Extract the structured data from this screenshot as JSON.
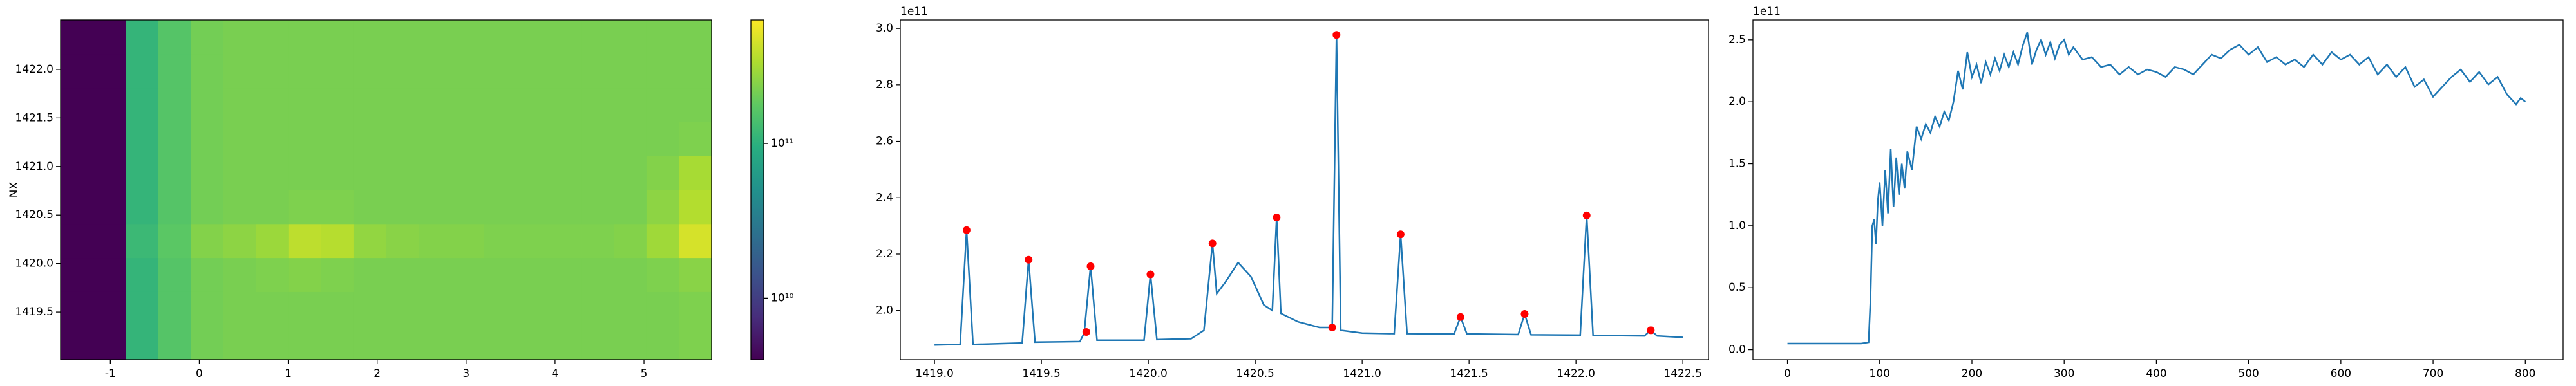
{
  "chart_data": [
    {
      "type": "heatmap",
      "ylabel": "NX",
      "xlim": [
        -1.56,
        5.76
      ],
      "ylim": [
        1419.01,
        1422.51
      ],
      "xticks": [
        -1,
        0,
        1,
        2,
        3,
        4,
        5
      ],
      "yticks": [
        1419.5,
        {
          "value": 1420,
          "label": "1420.0"
        },
        1420.5,
        {
          "value": 1421,
          "label": "1421.0"
        },
        1421.5,
        {
          "value": 1422,
          "label": "1422.0"
        }
      ],
      "xbins": [
        -1.56,
        -1.194,
        -0.828,
        -0.462,
        -0.096,
        0.27,
        0.636,
        1.002,
        1.368,
        1.734,
        2.1,
        2.466,
        2.832,
        3.198,
        3.564,
        3.93,
        4.296,
        4.662,
        5.028,
        5.394,
        5.76
      ],
      "ybins": [
        1419.01,
        1419.36,
        1419.71,
        1420.06,
        1420.41,
        1420.76,
        1421.11,
        1421.46,
        1421.81,
        1422.16,
        1422.51
      ],
      "z": [
        [
          4000000000.0,
          4000000000.0,
          110000000000.0,
          160000000000.0,
          210000000000.0,
          220000000000.0,
          220000000000.0,
          220000000000.0,
          220000000000.0,
          220000000000.0,
          220000000000.0,
          220000000000.0,
          220000000000.0,
          220000000000.0,
          220000000000.0,
          220000000000.0,
          220000000000.0,
          220000000000.0,
          220000000000.0,
          230000000000.0
        ],
        [
          4000000000.0,
          4000000000.0,
          110000000000.0,
          160000000000.0,
          210000000000.0,
          220000000000.0,
          220000000000.0,
          220000000000.0,
          220000000000.0,
          220000000000.0,
          220000000000.0,
          220000000000.0,
          220000000000.0,
          220000000000.0,
          220000000000.0,
          220000000000.0,
          220000000000.0,
          220000000000.0,
          220000000000.0,
          230000000000.0
        ],
        [
          4000000000.0,
          4000000000.0,
          110000000000.0,
          160000000000.0,
          210000000000.0,
          220000000000.0,
          230000000000.0,
          240000000000.0,
          230000000000.0,
          220000000000.0,
          220000000000.0,
          220000000000.0,
          220000000000.0,
          220000000000.0,
          220000000000.0,
          220000000000.0,
          220000000000.0,
          220000000000.0,
          230000000000.0,
          250000000000.0
        ],
        [
          4000000000.0,
          4000000000.0,
          120000000000.0,
          170000000000.0,
          240000000000.0,
          260000000000.0,
          290000000000.0,
          380000000000.0,
          360000000000.0,
          270000000000.0,
          250000000000.0,
          240000000000.0,
          240000000000.0,
          230000000000.0,
          230000000000.0,
          230000000000.0,
          230000000000.0,
          240000000000.0,
          300000000000.0,
          460000000000.0
        ],
        [
          4000000000.0,
          4000000000.0,
          110000000000.0,
          160000000000.0,
          210000000000.0,
          220000000000.0,
          220000000000.0,
          230000000000.0,
          230000000000.0,
          220000000000.0,
          220000000000.0,
          220000000000.0,
          220000000000.0,
          220000000000.0,
          220000000000.0,
          220000000000.0,
          220000000000.0,
          220000000000.0,
          260000000000.0,
          350000000000.0
        ],
        [
          4000000000.0,
          4000000000.0,
          110000000000.0,
          160000000000.0,
          210000000000.0,
          220000000000.0,
          220000000000.0,
          220000000000.0,
          220000000000.0,
          220000000000.0,
          220000000000.0,
          220000000000.0,
          220000000000.0,
          220000000000.0,
          220000000000.0,
          220000000000.0,
          220000000000.0,
          220000000000.0,
          240000000000.0,
          320000000000.0
        ],
        [
          4000000000.0,
          4000000000.0,
          110000000000.0,
          160000000000.0,
          210000000000.0,
          220000000000.0,
          220000000000.0,
          220000000000.0,
          220000000000.0,
          220000000000.0,
          220000000000.0,
          220000000000.0,
          220000000000.0,
          220000000000.0,
          220000000000.0,
          220000000000.0,
          220000000000.0,
          220000000000.0,
          220000000000.0,
          230000000000.0
        ],
        [
          4000000000.0,
          4000000000.0,
          110000000000.0,
          160000000000.0,
          210000000000.0,
          220000000000.0,
          220000000000.0,
          220000000000.0,
          220000000000.0,
          220000000000.0,
          220000000000.0,
          220000000000.0,
          220000000000.0,
          220000000000.0,
          220000000000.0,
          220000000000.0,
          220000000000.0,
          220000000000.0,
          220000000000.0,
          220000000000.0
        ],
        [
          4000000000.0,
          4000000000.0,
          110000000000.0,
          160000000000.0,
          210000000000.0,
          220000000000.0,
          220000000000.0,
          220000000000.0,
          220000000000.0,
          220000000000.0,
          220000000000.0,
          220000000000.0,
          220000000000.0,
          220000000000.0,
          220000000000.0,
          220000000000.0,
          220000000000.0,
          220000000000.0,
          220000000000.0,
          220000000000.0
        ],
        [
          4000000000.0,
          4000000000.0,
          110000000000.0,
          160000000000.0,
          210000000000.0,
          220000000000.0,
          220000000000.0,
          220000000000.0,
          220000000000.0,
          220000000000.0,
          220000000000.0,
          220000000000.0,
          220000000000.0,
          220000000000.0,
          220000000000.0,
          220000000000.0,
          220000000000.0,
          220000000000.0,
          220000000000.0,
          220000000000.0
        ]
      ],
      "colormap": "viridis",
      "zscale": "log",
      "clim": [
        4000000000.0,
        630000000000.0
      ],
      "colorbar_ticks": [
        {
          "value": 10000000000.0,
          "label": "10¹⁰"
        },
        {
          "value": 100000000000.0,
          "label": "10¹¹"
        }
      ]
    },
    {
      "type": "line",
      "y_offset_label": "1e11",
      "xlim": [
        1418.84,
        1422.62
      ],
      "ylim": [
        1.826,
        3.03
      ],
      "xticks": [
        {
          "value": 1419,
          "label": "1419.0"
        },
        1419.5,
        {
          "value": 1420,
          "label": "1420.0"
        },
        1420.5,
        {
          "value": 1421,
          "label": "1421.0"
        },
        1421.5,
        {
          "value": 1422,
          "label": "1422.0"
        },
        1422.5
      ],
      "yticks": [
        {
          "value": 2,
          "label": "2.0"
        },
        2.2,
        2.4,
        2.6,
        2.8,
        {
          "value": 3,
          "label": "3.0"
        }
      ],
      "series": [
        {
          "color": "#1f77b4",
          "style": "line",
          "x": [
            1419.0,
            1419.12,
            1419.15,
            1419.18,
            1419.41,
            1419.44,
            1419.47,
            1419.68,
            1419.7,
            1419.73,
            1419.76,
            1419.98,
            1420.01,
            1420.04,
            1420.2,
            1420.26,
            1420.3,
            1420.32,
            1420.36,
            1420.42,
            1420.48,
            1420.54,
            1420.58,
            1420.6,
            1420.62,
            1420.7,
            1420.8,
            1420.86,
            1420.88,
            1420.9,
            1421.0,
            1421.15,
            1421.18,
            1421.21,
            1421.43,
            1421.46,
            1421.49,
            1421.73,
            1421.76,
            1421.79,
            1422.02,
            1422.05,
            1422.08,
            1422.32,
            1422.35,
            1422.38,
            1422.5
          ],
          "values": [
            1.878,
            1.88,
            2.285,
            1.88,
            1.885,
            2.18,
            1.888,
            1.89,
            1.92,
            2.157,
            1.895,
            1.895,
            2.128,
            1.897,
            1.9,
            1.93,
            2.238,
            2.06,
            2.1,
            2.17,
            2.12,
            2.02,
            2.0,
            2.33,
            1.99,
            1.96,
            1.94,
            1.94,
            2.977,
            1.93,
            1.92,
            1.918,
            2.27,
            1.918,
            1.917,
            1.977,
            1.917,
            1.915,
            1.988,
            1.914,
            1.913,
            2.337,
            1.912,
            1.91,
            1.93,
            1.91,
            1.905
          ]
        },
        {
          "color": "red",
          "style": "markers",
          "x": [
            1419.15,
            1419.44,
            1419.71,
            1419.73,
            1420.01,
            1420.3,
            1420.6,
            1420.86,
            1420.88,
            1421.18,
            1421.46,
            1421.76,
            1422.05,
            1422.35
          ],
          "values": [
            2.285,
            2.18,
            1.924,
            2.157,
            2.128,
            2.238,
            2.33,
            1.94,
            2.977,
            2.27,
            1.977,
            1.988,
            2.337,
            1.93
          ]
        }
      ]
    },
    {
      "type": "line",
      "y_offset_label": "1e11",
      "xlim": [
        -37.4,
        841
      ],
      "ylim": [
        -0.08,
        2.66
      ],
      "xticks": [
        0,
        100,
        200,
        300,
        400,
        500,
        600,
        700,
        800
      ],
      "yticks": [
        {
          "value": 0,
          "label": "0.0"
        },
        0.5,
        {
          "value": 1,
          "label": "1.0"
        },
        1.5,
        {
          "value": 2,
          "label": "2.0"
        },
        2.5
      ],
      "series": [
        {
          "color": "#1f77b4",
          "style": "line",
          "x": [
            0,
            20,
            40,
            60,
            80,
            88,
            90,
            92,
            94,
            96,
            98,
            100,
            103,
            106,
            109,
            112,
            115,
            118,
            121,
            124,
            127,
            130,
            135,
            140,
            145,
            150,
            155,
            160,
            165,
            170,
            175,
            180,
            185,
            190,
            195,
            200,
            205,
            210,
            215,
            220,
            225,
            230,
            235,
            240,
            245,
            250,
            255,
            260,
            265,
            270,
            275,
            280,
            285,
            290,
            295,
            300,
            305,
            310,
            320,
            330,
            340,
            350,
            360,
            370,
            380,
            390,
            400,
            410,
            420,
            430,
            440,
            450,
            460,
            470,
            480,
            490,
            500,
            510,
            520,
            530,
            540,
            550,
            560,
            570,
            580,
            590,
            600,
            610,
            620,
            630,
            640,
            650,
            660,
            670,
            680,
            690,
            700,
            710,
            720,
            730,
            740,
            750,
            760,
            770,
            780,
            790,
            795,
            800
          ],
          "values": [
            0.05,
            0.05,
            0.05,
            0.05,
            0.05,
            0.06,
            0.4,
            1.0,
            1.05,
            0.85,
            1.2,
            1.35,
            1.0,
            1.45,
            1.1,
            1.62,
            1.15,
            1.55,
            1.25,
            1.5,
            1.3,
            1.6,
            1.45,
            1.8,
            1.7,
            1.82,
            1.75,
            1.88,
            1.8,
            1.92,
            1.85,
            2.0,
            2.25,
            2.1,
            2.4,
            2.2,
            2.3,
            2.15,
            2.32,
            2.22,
            2.35,
            2.25,
            2.38,
            2.28,
            2.4,
            2.3,
            2.45,
            2.56,
            2.3,
            2.42,
            2.5,
            2.38,
            2.48,
            2.35,
            2.46,
            2.5,
            2.38,
            2.44,
            2.34,
            2.36,
            2.28,
            2.3,
            2.22,
            2.28,
            2.22,
            2.26,
            2.24,
            2.2,
            2.28,
            2.26,
            2.22,
            2.3,
            2.38,
            2.35,
            2.42,
            2.46,
            2.38,
            2.44,
            2.32,
            2.36,
            2.3,
            2.34,
            2.28,
            2.38,
            2.3,
            2.4,
            2.34,
            2.38,
            2.3,
            2.36,
            2.22,
            2.3,
            2.2,
            2.28,
            2.12,
            2.18,
            2.04,
            2.12,
            2.2,
            2.26,
            2.16,
            2.24,
            2.14,
            2.2,
            2.06,
            1.98,
            2.03,
            2.0
          ]
        }
      ]
    }
  ]
}
